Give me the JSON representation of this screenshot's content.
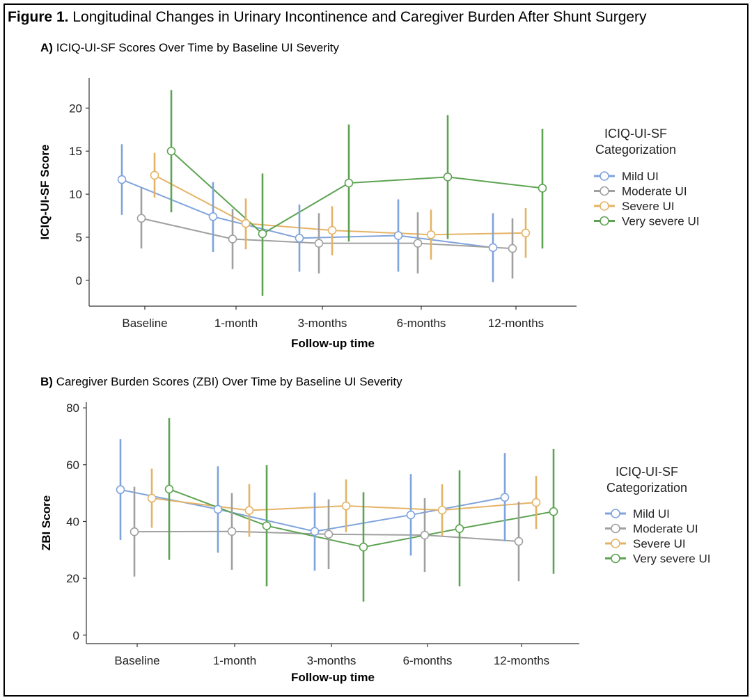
{
  "figure": {
    "label": "Figure 1.",
    "title": "Longitudinal Changes in Urinary Incontinence and Caregiver Burden After Shunt Surgery"
  },
  "colors": {
    "mild": "#7fa3dc",
    "moderate": "#a0a0a0",
    "severe": "#e5b366",
    "very_severe": "#5da352"
  },
  "chart_data": [
    {
      "type": "line",
      "panel_label": "A)",
      "title": "ICIQ-UI-SF Scores Over Time by Baseline UI Severity",
      "xlabel": "Follow-up time",
      "ylabel": "ICIQ-UI-SF Score",
      "categories": [
        "Baseline",
        "1-month",
        "3-months",
        "6-months",
        "12-months"
      ],
      "ylim": [
        -3,
        23.5
      ],
      "yticks": [
        0,
        5,
        10,
        15,
        20
      ],
      "grid": false,
      "legend": {
        "title": "ICIQ-UI-SF Categorization",
        "position": "right"
      },
      "series": [
        {
          "name": "Mild UI",
          "color_key": "mild",
          "values": [
            11.7,
            7.4,
            4.9,
            5.2,
            3.8
          ],
          "err_low": [
            7.6,
            3.3,
            1.0,
            1.0,
            -0.2
          ],
          "err_high": [
            15.8,
            11.4,
            8.8,
            9.4,
            7.8
          ]
        },
        {
          "name": "Moderate UI",
          "color_key": "moderate",
          "values": [
            7.2,
            4.8,
            4.3,
            4.3,
            3.7
          ],
          "err_low": [
            3.7,
            1.3,
            0.8,
            0.8,
            0.2
          ],
          "err_high": [
            10.7,
            8.3,
            7.8,
            7.9,
            7.2
          ]
        },
        {
          "name": "Severe UI",
          "color_key": "severe",
          "values": [
            12.2,
            6.6,
            5.8,
            5.3,
            5.5
          ],
          "err_low": [
            9.6,
            3.6,
            2.9,
            2.4,
            2.6
          ],
          "err_high": [
            14.8,
            9.5,
            8.6,
            8.2,
            8.4
          ]
        },
        {
          "name": "Very severe UI",
          "color_key": "very_severe",
          "values": [
            15.0,
            5.4,
            11.3,
            12.0,
            10.7
          ],
          "err_low": [
            7.9,
            -1.8,
            4.5,
            4.8,
            3.7
          ],
          "err_high": [
            22.1,
            12.4,
            18.1,
            19.2,
            17.6
          ]
        }
      ]
    },
    {
      "type": "line",
      "panel_label": "B)",
      "title": "Caregiver Burden Scores (ZBI) Over Time by Baseline UI Severity",
      "xlabel": "Follow-up time",
      "ylabel": "ZBI Score",
      "categories": [
        "Baseline",
        "1-month",
        "3-months",
        "6-months",
        "12-months"
      ],
      "ylim": [
        -3,
        82
      ],
      "yticks": [
        0,
        20,
        40,
        60,
        80
      ],
      "grid": false,
      "legend": {
        "title": "ICIQ-UI-SF Categorization",
        "position": "right"
      },
      "series": [
        {
          "name": "Mild UI",
          "color_key": "mild",
          "values": [
            51.2,
            44.3,
            36.5,
            42.3,
            48.5
          ],
          "err_low": [
            33.5,
            29.0,
            22.7,
            28.0,
            33.0
          ],
          "err_high": [
            69.0,
            59.4,
            50.2,
            56.7,
            64.1
          ]
        },
        {
          "name": "Moderate UI",
          "color_key": "moderate",
          "values": [
            36.4,
            36.5,
            35.5,
            35.2,
            33.0
          ],
          "err_low": [
            20.6,
            23.0,
            23.2,
            22.2,
            19.0
          ],
          "err_high": [
            52.2,
            50.0,
            47.8,
            48.2,
            47.0
          ]
        },
        {
          "name": "Severe UI",
          "color_key": "severe",
          "values": [
            48.2,
            43.9,
            45.5,
            44.0,
            46.7
          ],
          "err_low": [
            37.8,
            34.6,
            36.3,
            34.9,
            37.4
          ],
          "err_high": [
            58.6,
            53.2,
            54.8,
            53.1,
            56.0
          ]
        },
        {
          "name": "Very severe UI",
          "color_key": "very_severe",
          "values": [
            51.4,
            38.5,
            31.0,
            37.5,
            43.5
          ],
          "err_low": [
            26.5,
            17.2,
            11.8,
            17.2,
            21.6
          ],
          "err_high": [
            76.4,
            59.9,
            50.3,
            58.0,
            65.6
          ]
        }
      ]
    }
  ]
}
